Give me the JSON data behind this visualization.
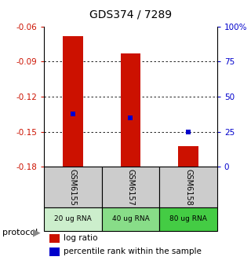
{
  "title": "GDS374 / 7289",
  "samples": [
    "GSM6155",
    "GSM6157",
    "GSM6158"
  ],
  "protocols": [
    "20 ug RNA",
    "40 ug RNA",
    "80 ug RNA"
  ],
  "bar_tops": [
    -0.068,
    -0.083,
    -0.162
  ],
  "bar_bottom": -0.18,
  "percentile_values": [
    -0.135,
    -0.138,
    -0.15
  ],
  "ylim_left": [
    -0.18,
    -0.06
  ],
  "yticks_left": [
    -0.18,
    -0.15,
    -0.12,
    -0.09,
    -0.06
  ],
  "yticks_right_labels": [
    "0",
    "25",
    "50",
    "75",
    "100%"
  ],
  "bar_color": "#cc1100",
  "marker_color": "#0000cc",
  "protocol_bg": [
    "#cceecc",
    "#88dd88",
    "#44cc44"
  ],
  "sample_bg": "#cccccc",
  "left_label_color": "#cc1100",
  "right_label_color": "#0000cc",
  "legend_sq_red": "#cc1100",
  "legend_sq_blue": "#0000cc",
  "bar_width": 0.35
}
